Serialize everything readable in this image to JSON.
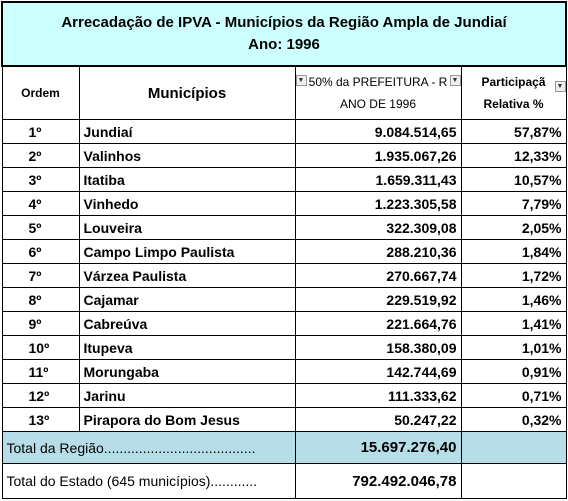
{
  "header": {
    "title": "Arrecadação de IPVA - Municípios da Região Ampla de Jundiaí",
    "subtitle": "Ano: 1996"
  },
  "table": {
    "columns": [
      "Ordem",
      "Municípios",
      [
        "50% da PREFEITURA - R",
        "ANO DE 1996"
      ],
      [
        "Participaçã",
        "Relativa  %"
      ]
    ],
    "rows": [
      [
        "1º",
        "Jundiaí",
        "9.084.514,65",
        "57,87%"
      ],
      [
        "2º",
        "Valinhos",
        "1.935.067,26",
        "12,33%"
      ],
      [
        "3º",
        "Itatiba",
        "1.659.311,43",
        "10,57%"
      ],
      [
        "4º",
        "Vinhedo",
        "1.223.305,58",
        "7,79%"
      ],
      [
        "5º",
        "Louveira",
        "322.309,08",
        "2,05%"
      ],
      [
        "6º",
        "Campo Limpo Paulista",
        "288.210,36",
        "1,84%"
      ],
      [
        "7º",
        "Várzea Paulista",
        "270.667,74",
        "1,72%"
      ],
      [
        "8º",
        "Cajamar",
        "229.519,92",
        "1,46%"
      ],
      [
        "9º",
        "Cabreúva",
        "221.664,76",
        "1,41%"
      ],
      [
        "10º",
        "Itupeva",
        "158.380,09",
        "1,01%"
      ],
      [
        "11º",
        "Morungaba",
        "142.744,69",
        "0,91%"
      ],
      [
        "12º",
        "Jarinu",
        "111.333,62",
        "0,71%"
      ],
      [
        "13º",
        "Pirapora do Bom Jesus",
        "50.247,22",
        "0,32%"
      ]
    ],
    "totals": [
      [
        "Total da Região.......................................",
        "15.697.276,40"
      ],
      [
        "Total do Estado (645 municípios)............",
        "792.492.046,78"
      ]
    ]
  }
}
